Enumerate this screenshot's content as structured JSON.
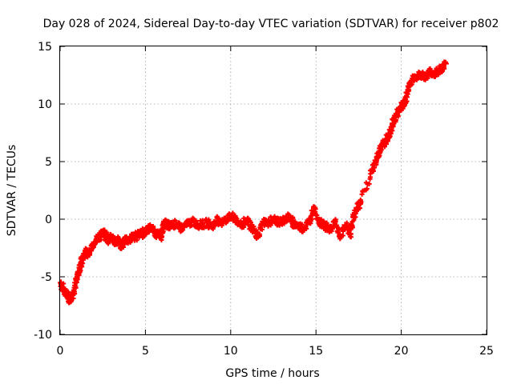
{
  "chart_data": {
    "type": "scatter",
    "title": "Day 028 of 2024, Sidereal Day-to-day VTEC variation (SDTVAR) for receiver p802",
    "xlabel": "GPS time / hours",
    "ylabel": "SDTVAR / TECUs",
    "xlim": [
      0,
      25
    ],
    "ylim": [
      -10,
      15
    ],
    "xticks": [
      0,
      5,
      10,
      15,
      20,
      25
    ],
    "yticks": [
      -10,
      -5,
      0,
      5,
      10,
      15
    ],
    "grid": true,
    "marker": "+",
    "series_color": "#ff0000",
    "series": [
      {
        "name": "SDTVAR",
        "x": [
          0.05,
          0.15,
          0.3,
          0.45,
          0.6,
          0.75,
          0.9,
          1.05,
          1.2,
          1.35,
          1.5,
          1.65,
          1.8,
          2.0,
          2.2,
          2.4,
          2.6,
          2.8,
          3.0,
          3.2,
          3.4,
          3.6,
          3.8,
          4.0,
          4.2,
          4.4,
          4.6,
          4.8,
          5.0,
          5.3,
          5.6,
          5.9,
          6.1,
          6.3,
          6.5,
          6.8,
          7.1,
          7.4,
          7.7,
          8.0,
          8.3,
          8.6,
          8.9,
          9.2,
          9.5,
          9.8,
          10.1,
          10.4,
          10.7,
          11.0,
          11.3,
          11.6,
          11.9,
          12.2,
          12.5,
          12.8,
          13.1,
          13.4,
          13.7,
          14.0,
          14.3,
          14.6,
          14.9,
          15.2,
          15.5,
          15.8,
          16.1,
          16.4,
          16.7,
          17.0,
          17.2,
          17.4,
          17.6,
          18.3,
          18.5,
          18.7,
          18.9,
          19.1,
          19.3,
          19.5,
          19.7,
          19.9,
          20.1,
          20.3,
          20.5,
          20.8,
          21.1,
          21.4,
          21.7,
          22.0,
          22.3,
          22.6
        ],
        "y": [
          -5.5,
          -6.0,
          -6.3,
          -6.7,
          -7.0,
          -6.5,
          -5.5,
          -4.8,
          -4.0,
          -3.3,
          -2.8,
          -3.0,
          -2.6,
          -2.0,
          -1.6,
          -1.4,
          -1.0,
          -1.8,
          -1.6,
          -2.0,
          -1.8,
          -2.4,
          -1.7,
          -1.9,
          -1.5,
          -1.6,
          -1.2,
          -1.3,
          -1.0,
          -0.7,
          -1.2,
          -1.5,
          -0.3,
          -0.5,
          -0.6,
          -0.4,
          -0.8,
          -0.5,
          -0.2,
          -0.4,
          -0.5,
          -0.3,
          -0.6,
          -0.1,
          -0.3,
          0.1,
          0.2,
          -0.2,
          -0.5,
          0.0,
          -1.0,
          -1.5,
          -0.2,
          -0.4,
          0.0,
          -0.3,
          -0.1,
          0.2,
          -0.4,
          -0.6,
          -0.8,
          -0.2,
          1.0,
          -0.3,
          -0.5,
          -1.0,
          -0.2,
          -1.5,
          -0.5,
          -1.3,
          0.2,
          1.0,
          1.5,
          4.3,
          5.1,
          5.8,
          6.4,
          6.9,
          7.2,
          8.3,
          9.0,
          9.6,
          10.0,
          10.6,
          11.8,
          12.3,
          12.6,
          12.4,
          12.8,
          12.6,
          13.0,
          13.5
        ]
      }
    ]
  }
}
